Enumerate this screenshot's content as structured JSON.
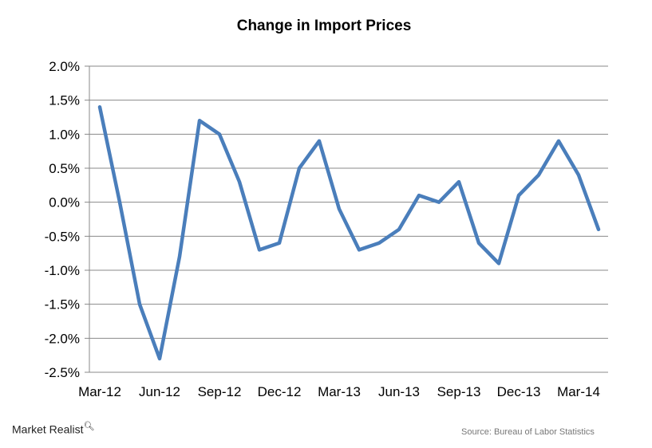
{
  "chart_data": {
    "type": "line",
    "title": "Change in Import Prices",
    "xlabel": "",
    "ylabel": "",
    "categories": [
      "Mar-12",
      "Apr-12",
      "May-12",
      "Jun-12",
      "Jul-12",
      "Aug-12",
      "Sep-12",
      "Oct-12",
      "Nov-12",
      "Dec-12",
      "Jan-13",
      "Feb-13",
      "Mar-13",
      "Apr-13",
      "May-13",
      "Jun-13",
      "Jul-13",
      "Aug-13",
      "Sep-13",
      "Oct-13",
      "Nov-13",
      "Dec-13",
      "Jan-14",
      "Feb-14",
      "Mar-14",
      "Apr-14"
    ],
    "x_tick_labels": [
      "Mar-12",
      "Jun-12",
      "Sep-12",
      "Dec-12",
      "Mar-13",
      "Jun-13",
      "Sep-13",
      "Dec-13",
      "Mar-14"
    ],
    "y_tick_labels": [
      "2.0%",
      "1.5%",
      "1.0%",
      "0.5%",
      "0.0%",
      "-0.5%",
      "-1.0%",
      "-1.5%",
      "-2.0%",
      "-2.5%"
    ],
    "ylim": [
      -2.5,
      2.0
    ],
    "y_unit": "%",
    "grid": true,
    "legend": "none",
    "series": [
      {
        "values": [
          1.4,
          0.0,
          -1.5,
          -2.3,
          -0.8,
          1.2,
          1.0,
          0.3,
          -0.7,
          -0.6,
          0.5,
          0.9,
          -0.1,
          -0.7,
          -0.6,
          -0.4,
          0.1,
          0.0,
          0.3,
          -0.6,
          -0.9,
          0.1,
          0.4,
          0.9,
          0.4,
          -0.4
        ],
        "color": "#4a7ebb"
      }
    ]
  },
  "branding": {
    "logo": "Market Realist"
  },
  "source": "Source: Bureau of Labor Statistics"
}
